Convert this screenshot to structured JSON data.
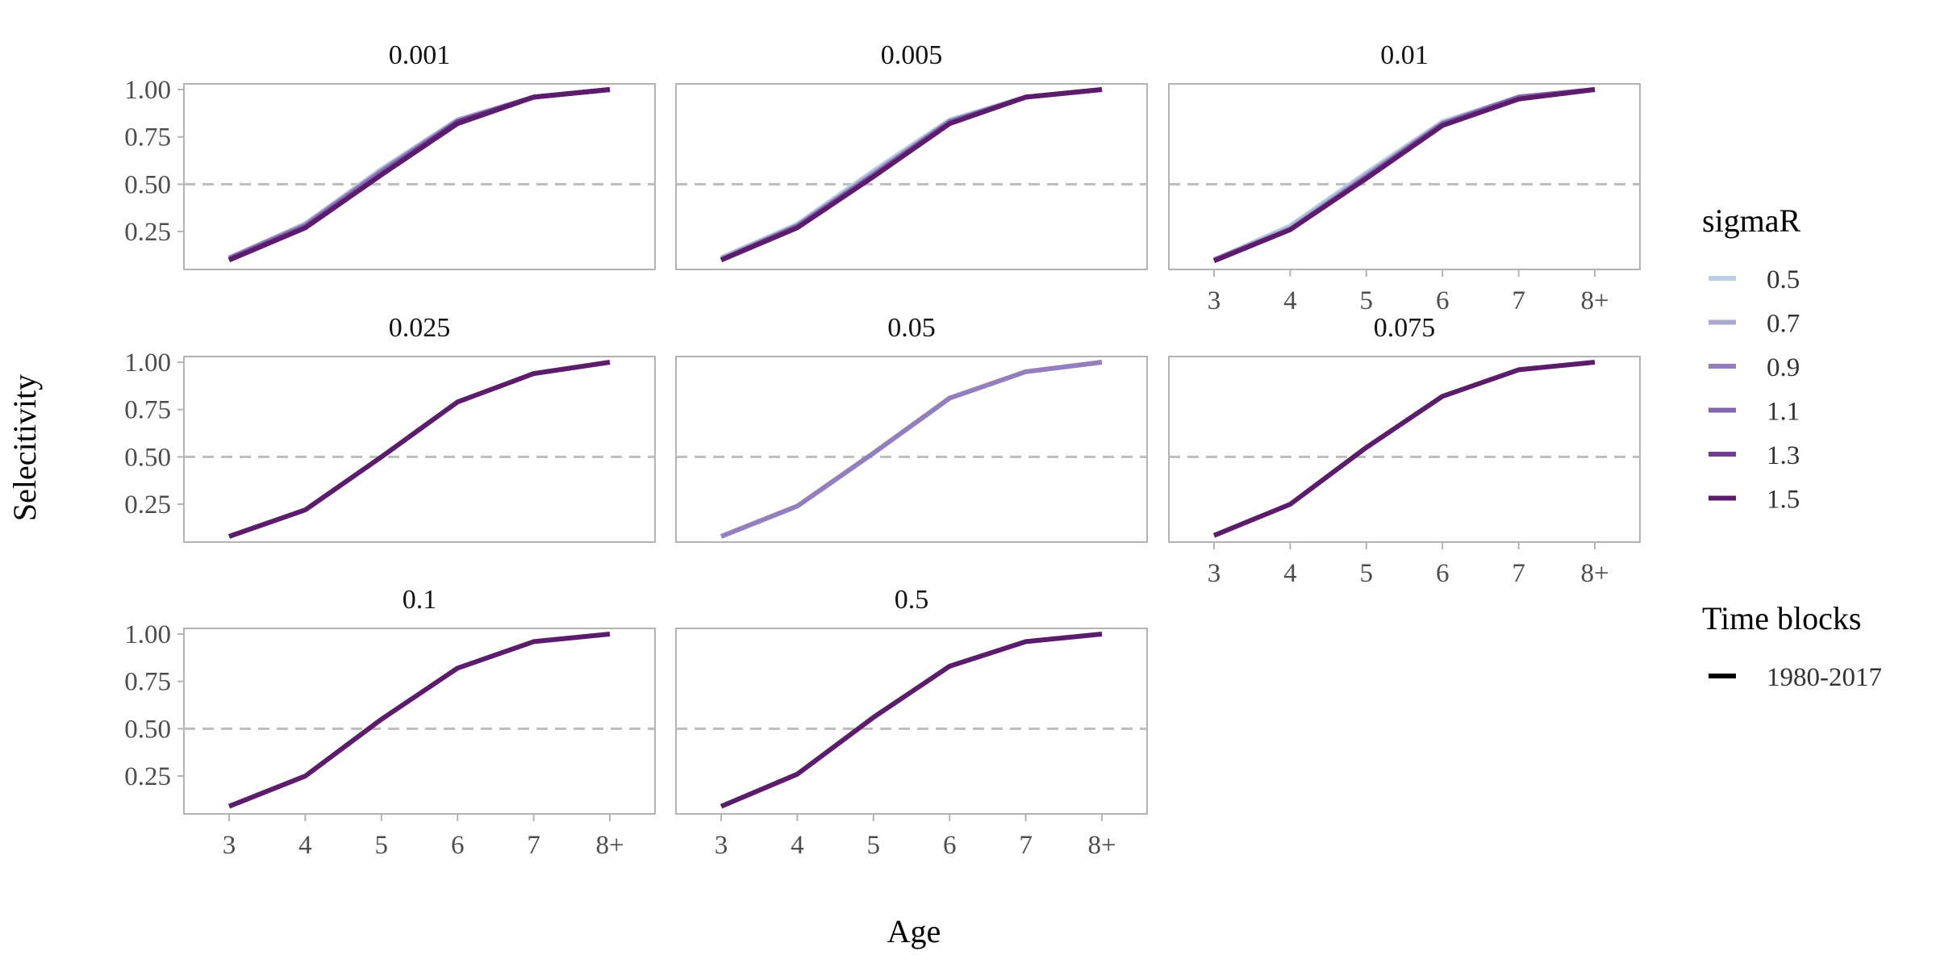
{
  "chart_data": {
    "type": "line",
    "facet_variable": "penalty",
    "xlabel": "Age",
    "ylabel": "Selecitivity",
    "categories": [
      "3",
      "4",
      "5",
      "6",
      "7",
      "8+"
    ],
    "yticks": [
      "0.25",
      "0.50",
      "0.75",
      "1.00"
    ],
    "ytick_values": [
      0.25,
      0.5,
      0.75,
      1.0
    ],
    "ylim": [
      0.05,
      1.03
    ],
    "reference_line": 0.5,
    "legend": {
      "color_title": "sigmaR",
      "linetype_title": "Time blocks",
      "linetype_entry": "1980-2017",
      "placement": "right"
    },
    "series_styles": [
      {
        "name": "0.5",
        "color": "#b9cde3"
      },
      {
        "name": "0.7",
        "color": "#a9a9d2"
      },
      {
        "name": "0.9",
        "color": "#937fbe"
      },
      {
        "name": "1.1",
        "color": "#8465b0"
      },
      {
        "name": "1.3",
        "color": "#6f3e94"
      },
      {
        "name": "1.5",
        "color": "#5c1c6c"
      }
    ],
    "panels": [
      {
        "title": "0.001",
        "show_xaxis": false,
        "series": [
          {
            "name": "0.5",
            "values": [
              0.11,
              0.29,
              0.58,
              0.84,
              0.96,
              1.0
            ]
          },
          {
            "name": "0.7",
            "values": [
              0.11,
              0.29,
              0.57,
              0.84,
              0.96,
              1.0
            ]
          },
          {
            "name": "0.9",
            "values": [
              0.11,
              0.28,
              0.57,
              0.83,
              0.96,
              1.0
            ]
          },
          {
            "name": "1.1",
            "values": [
              0.105,
              0.28,
              0.56,
              0.83,
              0.96,
              1.0
            ]
          },
          {
            "name": "1.3",
            "values": [
              0.1,
              0.27,
              0.55,
              0.83,
              0.96,
              1.0
            ]
          },
          {
            "name": "1.5",
            "values": [
              0.1,
              0.27,
              0.55,
              0.82,
              0.96,
              1.0
            ]
          }
        ]
      },
      {
        "title": "0.005",
        "show_xaxis": false,
        "series": [
          {
            "name": "0.5",
            "values": [
              0.11,
              0.29,
              0.57,
              0.84,
              0.96,
              1.0
            ]
          },
          {
            "name": "0.7",
            "values": [
              0.11,
              0.28,
              0.56,
              0.83,
              0.96,
              1.0
            ]
          },
          {
            "name": "1.1",
            "values": [
              0.1,
              0.28,
              0.55,
              0.83,
              0.96,
              1.0
            ]
          },
          {
            "name": "1.5",
            "values": [
              0.1,
              0.27,
              0.54,
              0.82,
              0.96,
              1.0
            ]
          }
        ]
      },
      {
        "title": "0.01",
        "show_xaxis": true,
        "series": [
          {
            "name": "0.5",
            "values": [
              0.1,
              0.28,
              0.56,
              0.83,
              0.96,
              1.0
            ]
          },
          {
            "name": "0.7",
            "values": [
              0.1,
              0.27,
              0.55,
              0.82,
              0.96,
              1.0
            ]
          },
          {
            "name": "1.1",
            "values": [
              0.1,
              0.26,
              0.54,
              0.82,
              0.96,
              1.0
            ]
          },
          {
            "name": "1.5",
            "values": [
              0.095,
              0.26,
              0.53,
              0.81,
              0.95,
              1.0
            ]
          }
        ]
      },
      {
        "title": "0.025",
        "show_xaxis": false,
        "series": [
          {
            "name": "1.5",
            "values": [
              0.08,
              0.22,
              0.5,
              0.79,
              0.94,
              1.0
            ]
          }
        ]
      },
      {
        "title": "0.05",
        "show_xaxis": false,
        "series": [
          {
            "name": "0.9",
            "values": [
              0.08,
              0.24,
              0.52,
              0.81,
              0.95,
              1.0
            ]
          }
        ]
      },
      {
        "title": "0.075",
        "show_xaxis": true,
        "series": [
          {
            "name": "1.5",
            "values": [
              0.085,
              0.25,
              0.55,
              0.82,
              0.96,
              1.0
            ]
          }
        ]
      },
      {
        "title": "0.1",
        "show_xaxis": true,
        "series": [
          {
            "name": "1.5",
            "values": [
              0.09,
              0.25,
              0.55,
              0.82,
              0.96,
              1.0
            ]
          }
        ]
      },
      {
        "title": "0.5",
        "show_xaxis": true,
        "series": [
          {
            "name": "1.5",
            "values": [
              0.09,
              0.26,
              0.56,
              0.83,
              0.96,
              1.0
            ]
          }
        ]
      }
    ]
  }
}
